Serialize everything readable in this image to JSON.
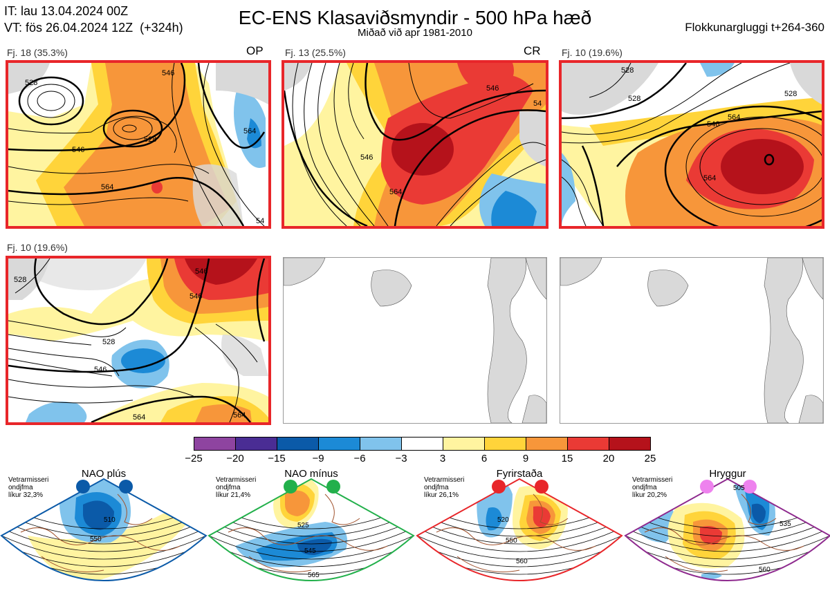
{
  "header": {
    "init_line": "IT: lau 13.04.2024 00Z",
    "valid_line": "VT: fös 26.04.2024 12Z  (+324h)",
    "title": "EC-ENS Klasaviðsmyndir - 500 hPa hæð",
    "subtitle": "Miðað við apr 1981-2010",
    "window": "Flokkunargluggi t+264-360"
  },
  "panels": [
    {
      "label": "Fj. 18 (35.3%)",
      "tag": "OP",
      "contours": [
        "528",
        "546",
        "528",
        "546",
        "564",
        "564",
        "54"
      ]
    },
    {
      "label": "Fj. 13 (25.5%)",
      "tag": "CR",
      "contours": [
        "546",
        "546",
        "564",
        "54"
      ]
    },
    {
      "label": "Fj. 10 (19.6%)",
      "tag": "",
      "contours": [
        "528",
        "546",
        "564",
        "564",
        "528",
        "528"
      ]
    },
    {
      "label": "Fj. 10 (19.6%)",
      "tag": "",
      "contours": [
        "528",
        "546",
        "546",
        "528",
        "546",
        "564",
        "564"
      ]
    }
  ],
  "colorbar": {
    "colors": [
      "#8e44a0",
      "#4a2d94",
      "#0b5aa8",
      "#1c8ad6",
      "#80c3ec",
      "#ffffff",
      "#fff4a0",
      "#ffd43a",
      "#f7963a",
      "#ea3a35",
      "#b5121b"
    ],
    "ticks": [
      "−25",
      "−20",
      "−15",
      "−9",
      "−6",
      "−3",
      "3",
      "6",
      "9",
      "15",
      "20",
      "25"
    ]
  },
  "regimes": [
    {
      "name": "NAO plús",
      "stat": "Vetrarmisseri\nondjfma\nlíkur 32,3%",
      "dot_color": "#0b5aa8",
      "frame_color": "#0b5aa8",
      "contours": [
        "510",
        "550"
      ]
    },
    {
      "name": "NAO mínus",
      "stat": "Vetrarmisseri\nondjfma\nlíkur 21,4%",
      "dot_color": "#22b04b",
      "frame_color": "#22b04b",
      "contours": [
        "525",
        "545",
        "565"
      ]
    },
    {
      "name": "Fyrirstaða",
      "stat": "Vetrarmisseri\nondjfma\nlíkur 26,1%",
      "dot_color": "#e8262a",
      "frame_color": "#e8262a",
      "contours": [
        "520",
        "550",
        "560"
      ]
    },
    {
      "name": "Hryggur",
      "stat": "Vetrarmisseri\nondjfma\nlíkur 20,2%",
      "dot_color": "#ee82ee",
      "frame_color": "#8e2a8e",
      "contours": [
        "505",
        "535",
        "560"
      ]
    }
  ]
}
